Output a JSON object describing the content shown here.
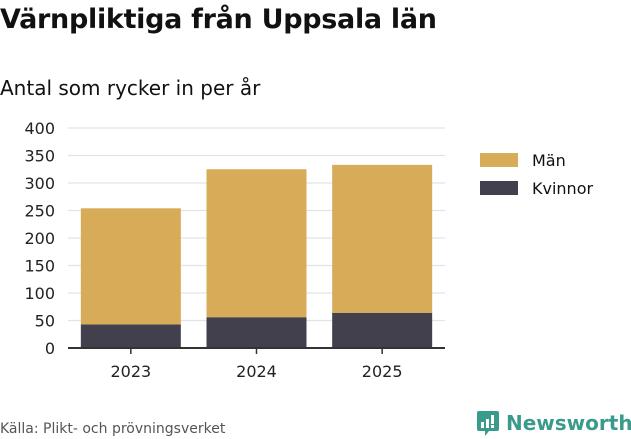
{
  "title": "Värnpliktiga från Uppsala län",
  "source": "Källa: Plikt- och prövningsverket",
  "brand": "Newsworthy",
  "colors": {
    "man": "#d8ab58",
    "kvinnor": "#42404d",
    "brand": "#3a9b8c"
  },
  "chart_data": {
    "type": "bar",
    "stacked": true,
    "title": "Antal som rycker in per år",
    "categories": [
      "2023",
      "2024",
      "2025"
    ],
    "series": [
      {
        "name": "Män",
        "values": [
          211,
          269,
          269
        ]
      },
      {
        "name": "Kvinnor",
        "values": [
          43,
          56,
          64
        ]
      }
    ],
    "ylim": [
      0,
      400
    ],
    "yticks": [
      0,
      50,
      100,
      150,
      200,
      250,
      300,
      350,
      400
    ],
    "grid": true,
    "legend": "right"
  }
}
